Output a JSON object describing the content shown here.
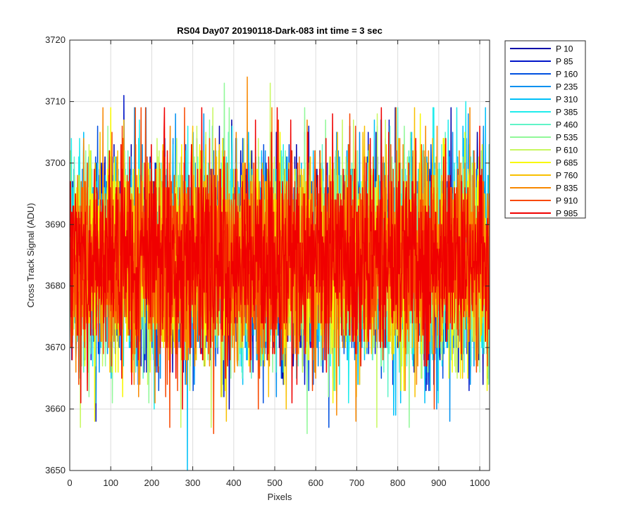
{
  "chart_data": {
    "type": "line",
    "title": "RS04 Day07 20190118-Dark-083 int time = 3 sec",
    "xlabel": "Pixels",
    "ylabel": "Cross Track Signal (ADU)",
    "xlim": [
      0,
      1024
    ],
    "ylim": [
      3650,
      3720
    ],
    "xticks": [
      "0",
      "100",
      "200",
      "300",
      "400",
      "500",
      "600",
      "700",
      "800",
      "900",
      "1000"
    ],
    "yticks": [
      "3650",
      "3660",
      "3670",
      "3680",
      "3690",
      "3700",
      "3710",
      "3720"
    ],
    "grid": true,
    "legend_position": "outside-top-right",
    "series_center": 3684.5,
    "series_noise_std": 8,
    "points_per_series": 1024,
    "series": [
      {
        "name": "P 10",
        "color": "#0000a8"
      },
      {
        "name": "P 85",
        "color": "#0015c8"
      },
      {
        "name": "P 160",
        "color": "#0050e0"
      },
      {
        "name": "P 235",
        "color": "#0090f0"
      },
      {
        "name": "P 310",
        "color": "#00c0f8"
      },
      {
        "name": "P 385",
        "color": "#20ecec"
      },
      {
        "name": "P 460",
        "color": "#60f4c8"
      },
      {
        "name": "P 535",
        "color": "#90f898"
      },
      {
        "name": "P 610",
        "color": "#c8f860"
      },
      {
        "name": "P 685",
        "color": "#f8f800"
      },
      {
        "name": "P 760",
        "color": "#f8c000"
      },
      {
        "name": "P 835",
        "color": "#f88800"
      },
      {
        "name": "P 910",
        "color": "#f84800"
      },
      {
        "name": "P 985",
        "color": "#f00000"
      }
    ],
    "annotated_extremes": [
      {
        "series": "P 85",
        "x": 131,
        "y": 3711
      },
      {
        "series": "P 835",
        "x": 432,
        "y": 3714
      },
      {
        "series": "P 535",
        "x": 376,
        "y": 3713
      },
      {
        "series": "P 610",
        "x": 488,
        "y": 3713
      },
      {
        "series": "P 385",
        "x": 965,
        "y": 3710
      },
      {
        "series": "P 310",
        "x": 286,
        "y": 3650
      },
      {
        "series": "P 910",
        "x": 350,
        "y": 3656
      },
      {
        "series": "P 535",
        "x": 578,
        "y": 3656
      }
    ]
  }
}
